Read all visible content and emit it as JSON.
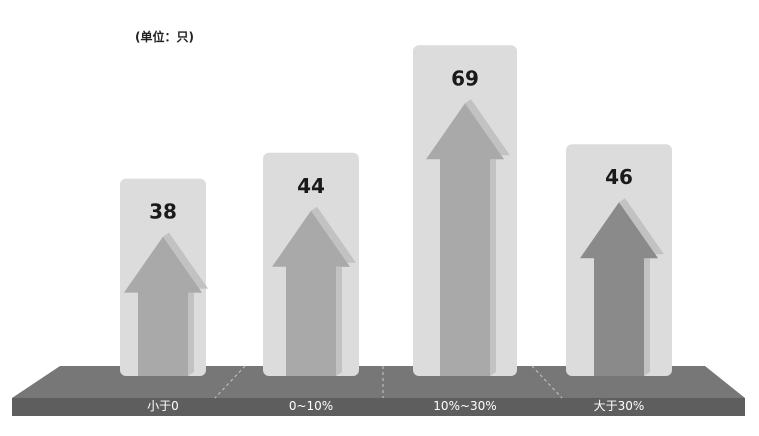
{
  "chart_data": {
    "type": "bar",
    "unit_note": "(单位：只)",
    "categories": [
      "小于0",
      "0~10%",
      "10%~30%",
      "大于30%"
    ],
    "values": [
      38,
      44,
      69,
      46
    ],
    "ylim": [
      0,
      75
    ],
    "grid": false,
    "legend": "none",
    "colors": {
      "backdrop": "#dcdcdc",
      "arrow": "#a9a9a9",
      "arrow_last": "#8a8a8a",
      "floor": "#777777",
      "floor_front": "#5e5e5e",
      "value_text": "#1a1a1a",
      "category_text": "#ffffff"
    }
  }
}
